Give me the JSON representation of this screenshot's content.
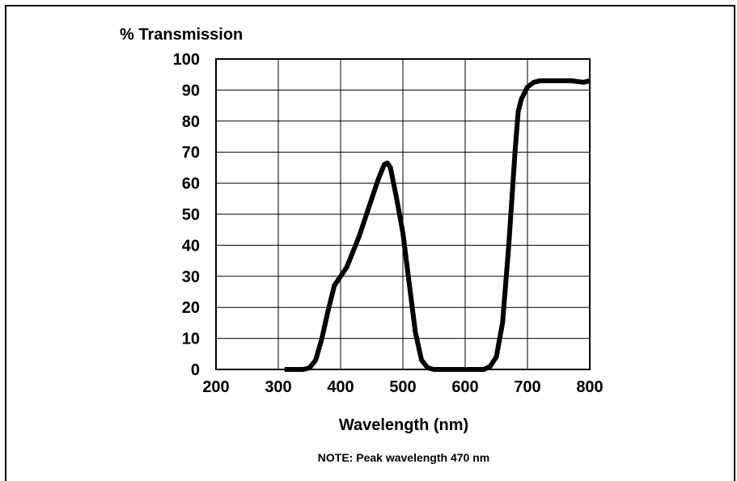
{
  "chart_data": {
    "type": "line",
    "ylabel": "% Transmission",
    "xlabel": "Wavelength (nm)",
    "note": "NOTE: Peak wavelength 470 nm",
    "xlim": [
      200,
      800
    ],
    "ylim": [
      0,
      100
    ],
    "x_ticks": [
      "200",
      "300",
      "400",
      "500",
      "600",
      "700",
      "800"
    ],
    "y_ticks": [
      "0",
      "10",
      "20",
      "30",
      "40",
      "50",
      "60",
      "70",
      "80",
      "90",
      "100"
    ],
    "grid": true,
    "series": [
      {
        "color": "#000000",
        "x": [
          310,
          320,
          330,
          340,
          350,
          360,
          370,
          380,
          390,
          400,
          410,
          420,
          430,
          440,
          450,
          460,
          470,
          475,
          480,
          490,
          500,
          510,
          520,
          530,
          540,
          550,
          560,
          570,
          580,
          600,
          620,
          630,
          640,
          650,
          660,
          670,
          680,
          685,
          690,
          700,
          710,
          720,
          730,
          750,
          770,
          790,
          800
        ],
        "y": [
          0,
          0,
          0,
          0,
          0.5,
          3,
          10,
          19,
          27,
          30,
          33,
          38,
          43,
          49,
          55,
          61,
          66,
          66.5,
          65,
          55,
          44,
          28,
          12,
          3,
          0.5,
          0,
          0,
          0,
          0,
          0,
          0,
          0,
          1,
          4,
          15,
          40,
          70,
          83,
          87,
          91,
          92.5,
          93,
          93,
          93,
          93,
          92.5,
          93
        ]
      }
    ]
  }
}
